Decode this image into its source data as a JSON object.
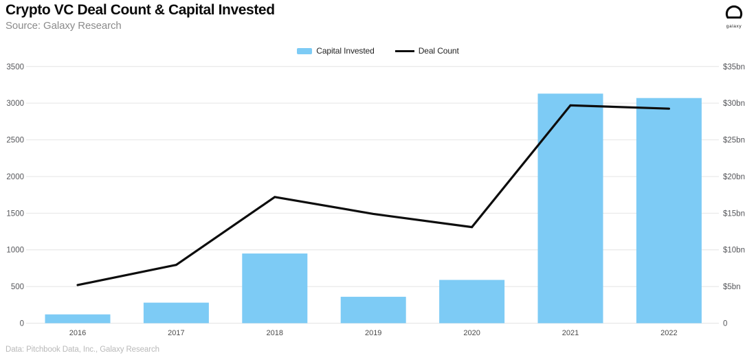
{
  "header": {
    "title": "Crypto VC Deal Count & Capital Invested",
    "subtitle": "Source: Galaxy Research"
  },
  "logo": {
    "label": "galaxy"
  },
  "footer": {
    "credit": "Data: Pitchbook Data, Inc., Galaxy Research"
  },
  "chart_data": {
    "type": "combo",
    "title": "Crypto VC Deal Count & Capital Invested",
    "categories": [
      "2016",
      "2017",
      "2018",
      "2019",
      "2020",
      "2021",
      "2022"
    ],
    "series": [
      {
        "name": "Capital Invested",
        "type": "bar",
        "axis": "right",
        "unit": "$bn",
        "color": "#7DCBF5",
        "values": [
          1.2,
          2.8,
          9.5,
          3.6,
          5.9,
          31.3,
          30.7
        ]
      },
      {
        "name": "Deal Count",
        "type": "line",
        "axis": "left",
        "color": "#0d0d0d",
        "values": [
          520,
          795,
          1720,
          1490,
          1310,
          2970,
          2925
        ]
      }
    ],
    "left_axis": {
      "min": 0,
      "max": 3500,
      "tick_step": 500,
      "ticks": [
        "0",
        "500",
        "1000",
        "1500",
        "2000",
        "2500",
        "3000",
        "3500"
      ]
    },
    "right_axis": {
      "min": 0,
      "max": 35,
      "tick_step": 5,
      "ticks": [
        "0",
        "$5bn",
        "$10bn",
        "$15bn",
        "$20bn",
        "$25bn",
        "$30bn",
        "$35bn"
      ]
    },
    "grid": {
      "horizontal": true,
      "vertical": false,
      "color": "#e4e4e4"
    },
    "legend_position": "top-center",
    "colors": {
      "axis_label": "#55565a",
      "x_label": "#4a4a4a",
      "bar": "#7DCBF5",
      "line": "#0d0d0d"
    }
  }
}
